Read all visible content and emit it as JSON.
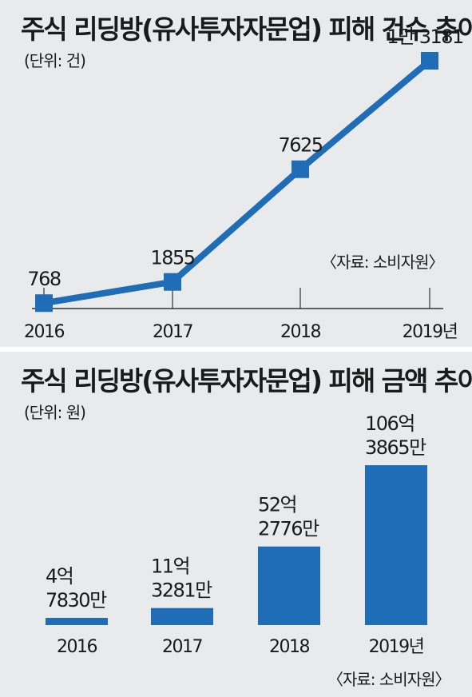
{
  "colors": {
    "accent": "#1f6db7",
    "background": "#e9eaec",
    "text": "#1a1a1a"
  },
  "chart_data": [
    {
      "type": "line",
      "title": "주식 리딩방(유사투자자문업) 피해 건수 추이",
      "unit_label": "(단위: 건)",
      "source": "〈자료: 소비자원〉",
      "categories": [
        "2016",
        "2017",
        "2018",
        "2019년"
      ],
      "values": [
        768,
        1855,
        7625,
        13181
      ],
      "data_labels": [
        "768",
        "1855",
        "7625",
        "1만 3181"
      ],
      "ylim": [
        0,
        14000
      ],
      "grid": false
    },
    {
      "type": "bar",
      "title": "주식 리딩방(유사투자자문업) 피해 금액 추이",
      "unit_label": "(단위: 원)",
      "source": "〈자료: 소비자원〉",
      "categories": [
        "2016",
        "2017",
        "2018",
        "2019년"
      ],
      "values": [
        478300000,
        1132810000,
        5227760000,
        10638650000
      ],
      "data_labels": [
        [
          "4억",
          "7830만"
        ],
        [
          "11억",
          "3281만"
        ],
        [
          "52억",
          "2776만"
        ],
        [
          "106억",
          "3865만"
        ]
      ],
      "ylim": [
        0,
        10638650000
      ],
      "grid": false
    }
  ]
}
